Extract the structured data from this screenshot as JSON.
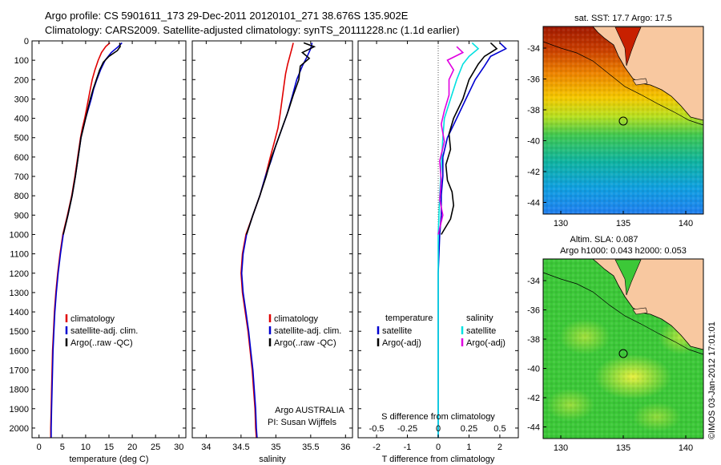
{
  "header": {
    "line1": "Argo profile: CS 5901611_173 29-Dec-2011 20120101_271 38.676S 135.902E",
    "line2": "Climatology: CARS2009. Satellite-adjusted climatology: synTS_20111228.nc (1.1d earlier)"
  },
  "chart_data": [
    {
      "type": "line",
      "id": "temperature",
      "xlabel": "temperature (deg C)",
      "xlim": [
        -1.5,
        31.5
      ],
      "xticks": [
        0,
        5,
        10,
        15,
        20,
        25,
        30
      ],
      "ylim": [
        0,
        2050
      ],
      "yticks": [
        0,
        100,
        200,
        300,
        400,
        500,
        600,
        700,
        800,
        900,
        1000,
        1100,
        1200,
        1300,
        1400,
        1500,
        1600,
        1700,
        1800,
        1900,
        2000
      ],
      "legend": [
        "climatology",
        "satellite-adj. clim.",
        "Argo(..raw -QC)"
      ],
      "series": [
        {
          "name": "climatology",
          "color": "#e00000",
          "points": [
            [
              15.2,
              10
            ],
            [
              14.3,
              30
            ],
            [
              13.4,
              60
            ],
            [
              12.7,
              100
            ],
            [
              12.0,
              150
            ],
            [
              11.4,
              200
            ],
            [
              11.0,
              250
            ],
            [
              10.6,
              300
            ],
            [
              10.2,
              350
            ],
            [
              9.8,
              400
            ],
            [
              9.3,
              450
            ],
            [
              8.9,
              500
            ],
            [
              8.3,
              600
            ],
            [
              7.7,
              700
            ],
            [
              7.0,
              800
            ],
            [
              6.1,
              900
            ],
            [
              5.1,
              1000
            ],
            [
              4.5,
              1100
            ],
            [
              4.0,
              1200
            ],
            [
              3.6,
              1300
            ],
            [
              3.3,
              1400
            ],
            [
              3.1,
              1500
            ],
            [
              2.9,
              1600
            ],
            [
              2.8,
              1700
            ],
            [
              2.7,
              1800
            ],
            [
              2.6,
              1900
            ],
            [
              2.5,
              2000
            ],
            [
              2.5,
              2050
            ]
          ]
        },
        {
          "name": "satellite-adj. clim.",
          "color": "#0000d0",
          "points": [
            [
              17.8,
              10
            ],
            [
              17.0,
              30
            ],
            [
              15.5,
              60
            ],
            [
              14.2,
              100
            ],
            [
              13.2,
              150
            ],
            [
              12.4,
              200
            ],
            [
              11.7,
              250
            ],
            [
              11.2,
              300
            ],
            [
              10.6,
              350
            ],
            [
              10.0,
              400
            ],
            [
              9.5,
              450
            ],
            [
              9.0,
              500
            ],
            [
              8.4,
              600
            ],
            [
              7.8,
              700
            ],
            [
              7.1,
              800
            ],
            [
              6.2,
              900
            ],
            [
              5.2,
              1000
            ],
            [
              4.6,
              1100
            ],
            [
              4.1,
              1200
            ],
            [
              3.7,
              1300
            ],
            [
              3.4,
              1400
            ],
            [
              3.2,
              1500
            ],
            [
              3.0,
              1600
            ],
            [
              2.9,
              1700
            ],
            [
              2.8,
              1800
            ],
            [
              2.7,
              1900
            ],
            [
              2.6,
              2000
            ],
            [
              2.6,
              2050
            ]
          ]
        },
        {
          "name": "Argo(..raw -QC)",
          "color": "#000000",
          "points": [
            [
              17.3,
              10
            ],
            [
              17.4,
              30
            ],
            [
              16.8,
              50
            ],
            [
              15.0,
              80
            ],
            [
              13.8,
              110
            ],
            [
              13.0,
              150
            ],
            [
              12.3,
              200
            ],
            [
              11.6,
              250
            ],
            [
              11.0,
              300
            ],
            [
              10.5,
              350
            ],
            [
              10.0,
              400
            ],
            [
              9.5,
              450
            ],
            [
              9.0,
              500
            ],
            [
              8.4,
              600
            ],
            [
              7.8,
              700
            ],
            [
              7.1,
              800
            ],
            [
              6.2,
              900
            ],
            [
              5.2,
              1000
            ]
          ]
        }
      ]
    },
    {
      "type": "line",
      "id": "salinity",
      "xlabel": "salinity",
      "xlim": [
        33.8,
        36.1
      ],
      "xticks": [
        34,
        34.5,
        35,
        35.5,
        36
      ],
      "ylim": [
        0,
        2050
      ],
      "legend": [
        "climatology",
        "satellite-adj. clim.",
        "Argo(..raw -QC)"
      ],
      "annotation": [
        "Argo AUSTRALIA",
        "PI: Susan Wijffels"
      ],
      "series": [
        {
          "name": "climatology",
          "color": "#e00000",
          "points": [
            [
              35.25,
              10
            ],
            [
              35.23,
              40
            ],
            [
              35.2,
              80
            ],
            [
              35.17,
              120
            ],
            [
              35.14,
              170
            ],
            [
              35.12,
              220
            ],
            [
              35.09,
              300
            ],
            [
              35.06,
              380
            ],
            [
              35.03,
              450
            ],
            [
              34.98,
              520
            ],
            [
              34.92,
              600
            ],
            [
              34.85,
              700
            ],
            [
              34.77,
              800
            ],
            [
              34.67,
              900
            ],
            [
              34.57,
              1000
            ],
            [
              34.52,
              1100
            ],
            [
              34.5,
              1200
            ],
            [
              34.52,
              1300
            ],
            [
              34.56,
              1400
            ],
            [
              34.6,
              1500
            ],
            [
              34.63,
              1600
            ],
            [
              34.66,
              1700
            ],
            [
              34.68,
              1800
            ],
            [
              34.7,
              1900
            ],
            [
              34.71,
              2000
            ],
            [
              34.72,
              2050
            ]
          ]
        },
        {
          "name": "satellite-adj. clim.",
          "color": "#0000d0",
          "points": [
            [
              35.52,
              10
            ],
            [
              35.5,
              40
            ],
            [
              35.45,
              80
            ],
            [
              35.38,
              130
            ],
            [
              35.3,
              200
            ],
            [
              35.24,
              280
            ],
            [
              35.16,
              380
            ],
            [
              35.08,
              460
            ],
            [
              35.0,
              540
            ],
            [
              34.93,
              620
            ],
            [
              34.85,
              700
            ],
            [
              34.77,
              800
            ],
            [
              34.67,
              900
            ],
            [
              34.58,
              1000
            ],
            [
              34.53,
              1100
            ],
            [
              34.51,
              1200
            ],
            [
              34.53,
              1300
            ],
            [
              34.57,
              1400
            ],
            [
              34.61,
              1500
            ],
            [
              34.64,
              1600
            ],
            [
              34.67,
              1700
            ],
            [
              34.69,
              1800
            ],
            [
              34.71,
              1900
            ],
            [
              34.72,
              2000
            ],
            [
              34.73,
              2050
            ]
          ]
        },
        {
          "name": "Argo(..raw -QC)",
          "color": "#000000",
          "points": [
            [
              35.4,
              10
            ],
            [
              35.55,
              30
            ],
            [
              35.38,
              60
            ],
            [
              35.48,
              90
            ],
            [
              35.35,
              130
            ],
            [
              35.33,
              200
            ],
            [
              35.25,
              280
            ],
            [
              35.18,
              360
            ],
            [
              35.1,
              440
            ],
            [
              35.02,
              520
            ],
            [
              34.94,
              600
            ],
            [
              34.86,
              700
            ],
            [
              34.77,
              800
            ],
            [
              34.67,
              900
            ],
            [
              34.58,
              1000
            ]
          ]
        }
      ]
    },
    {
      "type": "line",
      "id": "difference",
      "xlabel": "T difference from climatology",
      "xlabel_top": "S difference from climatology",
      "xlim": [
        -2.6,
        2.6
      ],
      "xticks": [
        -2,
        -1,
        0,
        1,
        2
      ],
      "sticks": [
        -0.5,
        -0.25,
        0,
        0.25,
        0.5
      ],
      "ylim": [
        0,
        2050
      ],
      "legend": {
        "temperature_title": "temperature",
        "salinity_title": "salinity",
        "temperature": [
          "satellite",
          "Argo(-adj)"
        ],
        "salinity": [
          "satellite",
          "Argo(-adj)"
        ]
      },
      "series": [
        {
          "name": "temperature satellite",
          "color": "#0000d0",
          "points": [
            [
              2.0,
              10
            ],
            [
              2.2,
              40
            ],
            [
              1.7,
              80
            ],
            [
              1.5,
              130
            ],
            [
              1.2,
              200
            ],
            [
              0.9,
              300
            ],
            [
              0.6,
              400
            ],
            [
              0.3,
              500
            ],
            [
              0.15,
              600
            ],
            [
              0.15,
              700
            ],
            [
              0.1,
              800
            ],
            [
              0.1,
              900
            ],
            [
              0.05,
              1000
            ],
            [
              0.0,
              1200
            ],
            [
              0.0,
              2050
            ]
          ]
        },
        {
          "name": "temperature Argo(-adj)",
          "color": "#000000",
          "points": [
            [
              1.7,
              10
            ],
            [
              1.9,
              40
            ],
            [
              1.5,
              80
            ],
            [
              1.3,
              120
            ],
            [
              1.0,
              200
            ],
            [
              0.8,
              300
            ],
            [
              0.5,
              400
            ],
            [
              0.35,
              480
            ],
            [
              0.4,
              560
            ],
            [
              0.25,
              640
            ],
            [
              0.3,
              720
            ],
            [
              0.45,
              780
            ],
            [
              0.5,
              850
            ],
            [
              0.4,
              920
            ],
            [
              0.1,
              1000
            ]
          ]
        },
        {
          "name": "salinity satellite",
          "color": "#00e0e0",
          "points": [
            [
              1.1,
              10
            ],
            [
              1.3,
              40
            ],
            [
              1.0,
              80
            ],
            [
              0.8,
              120
            ],
            [
              0.6,
              200
            ],
            [
              0.4,
              300
            ],
            [
              0.2,
              400
            ],
            [
              0.15,
              500
            ],
            [
              0.1,
              650
            ],
            [
              0.05,
              800
            ],
            [
              0.0,
              1000
            ],
            [
              0.0,
              2050
            ]
          ]
        },
        {
          "name": "salinity Argo(-adj)",
          "color": "#e000e0",
          "points": [
            [
              0.6,
              30
            ],
            [
              0.8,
              60
            ],
            [
              0.3,
              100
            ],
            [
              0.5,
              150
            ],
            [
              0.35,
              200
            ],
            [
              0.35,
              280
            ],
            [
              0.2,
              360
            ],
            [
              0.1,
              430
            ],
            [
              0.2,
              520
            ],
            [
              0.05,
              620
            ],
            [
              0.1,
              720
            ],
            [
              0.05,
              820
            ],
            [
              0.15,
              900
            ],
            [
              0.0,
              1000
            ]
          ]
        }
      ]
    }
  ],
  "maps": {
    "sst": {
      "title": "sat. SST: 17.7 Argo: 17.5",
      "lon_ticks": [
        "130",
        "135",
        "140"
      ],
      "lat_ticks": [
        "-34",
        "-36",
        "-38",
        "-40",
        "-42",
        "-44"
      ]
    },
    "sla": {
      "title1": "Altim. SLA: 0.087",
      "title2": "Argo h1000: 0.043 h2000: 0.053",
      "lon_ticks": [
        "130",
        "135",
        "140"
      ],
      "lat_ticks": [
        "-34",
        "-36",
        "-38",
        "-40",
        "-42",
        "-44"
      ]
    }
  },
  "credit": "©IMOS 03-Jan-2012 17:01:01"
}
